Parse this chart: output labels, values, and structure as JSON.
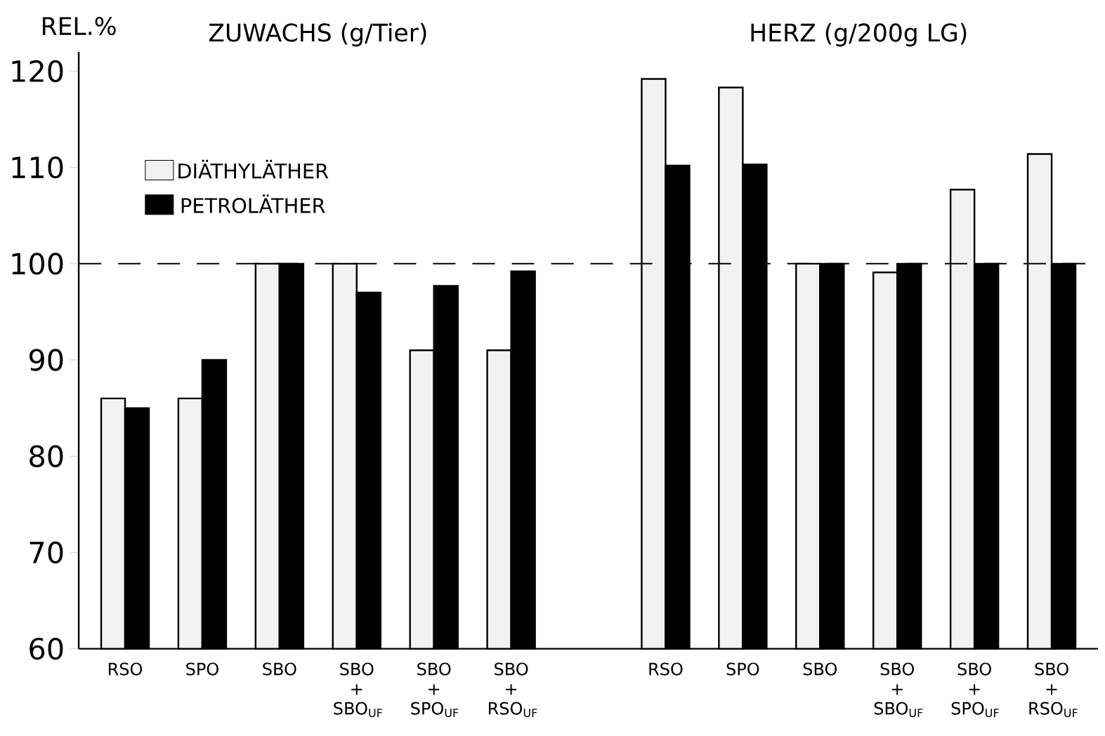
{
  "chart_data": {
    "type": "bar",
    "ylabel": "REL.%",
    "annotations": [
      "ZUWACHS (g/Tier)",
      "HERZ (g/200g LG)"
    ],
    "categories": [
      "RSO",
      "SPO",
      "SBO",
      "SBO + SBO$_{UF}$",
      "SBO + SPO$_{UF}$",
      "SBO + RSO$_{UF}$",
      null,
      "RSO",
      "SPO",
      "SBO",
      "SBO + SBO$_{UF}$",
      "SBO + SPO$_{UF}$",
      "SBO + RSO$_{UF}$"
    ],
    "series": [
      {
        "name": "DIÄTHYLÄTHER",
        "color": "#f2f2f2",
        "values": [
          86,
          86,
          100,
          100,
          91,
          91,
          null,
          119.2,
          118.3,
          100,
          99.1,
          107.7,
          111.4
        ]
      },
      {
        "name": "PETROLÄTHER",
        "color": "#000000",
        "values": [
          85,
          90,
          100,
          97,
          97.7,
          99.2,
          null,
          110.2,
          110.3,
          100,
          100,
          100,
          100
        ]
      }
    ],
    "ylim": [
      60,
      122
    ],
    "yticks": [
      60,
      70,
      80,
      90,
      100,
      110,
      120
    ],
    "legend": "top left",
    "ref_lines": [
      {
        "axis": "y",
        "value": 100,
        "line_style": "dashed"
      }
    ]
  }
}
